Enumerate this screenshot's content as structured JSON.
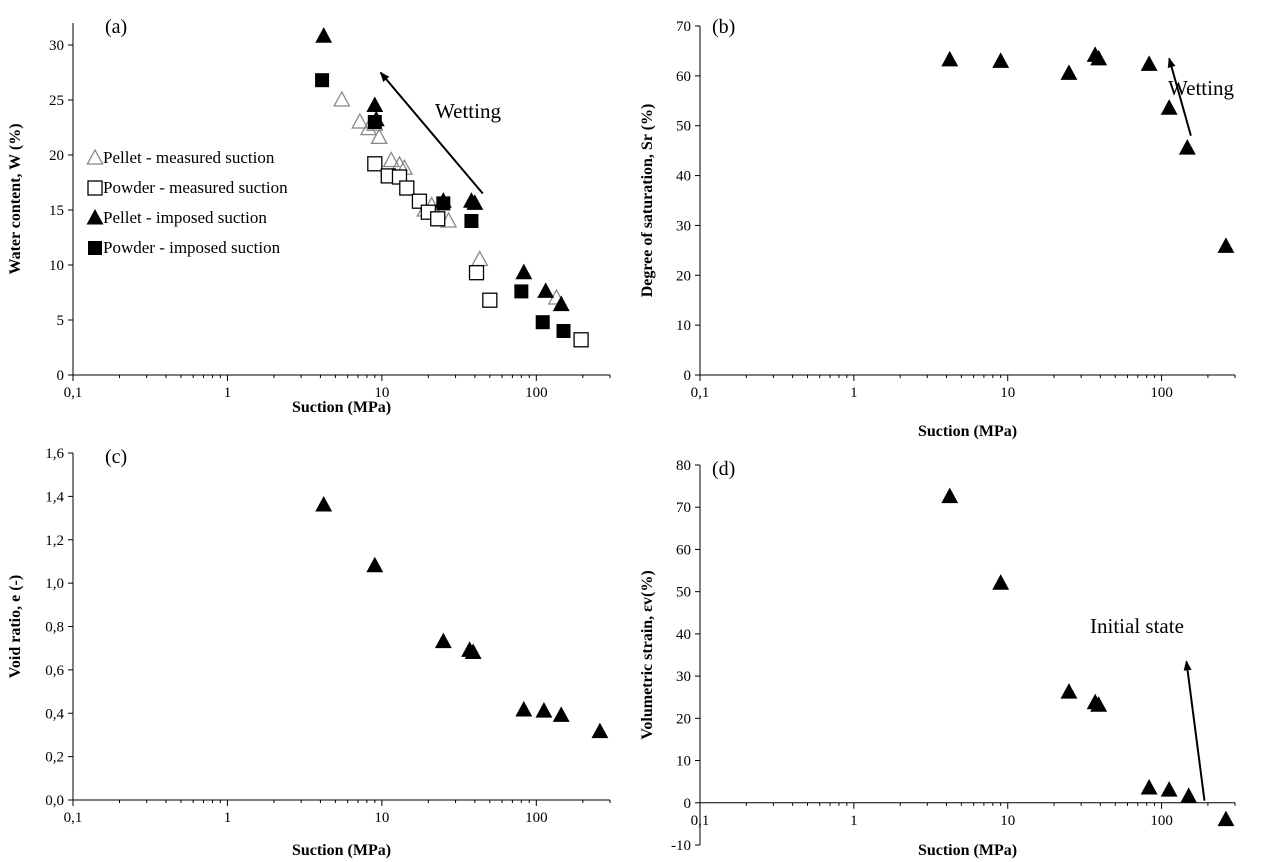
{
  "chart_data": [
    {
      "type": "scatter",
      "panel_label": "(a)",
      "xlabel": "Suction (MPa)",
      "ylabel": "Water content, W (%)",
      "xscale": "log",
      "xlim": [
        0.1,
        300
      ],
      "ylim": [
        0,
        32
      ],
      "xticks": [
        0.1,
        1,
        10,
        100
      ],
      "xtick_labels": [
        "0,1",
        "1",
        "10",
        "100"
      ],
      "yticks": [
        0,
        5,
        10,
        15,
        20,
        25,
        30
      ],
      "ytick_labels": [
        "0",
        "5",
        "10",
        "15",
        "20",
        "25",
        "30"
      ],
      "grid": false,
      "legend_position": "left",
      "series": [
        {
          "name": "Pellet - measured suction",
          "marker": "triangle-open",
          "color": "#888888",
          "x": [
            5.5,
            7.2,
            8.2,
            9.0,
            9.6,
            11.5,
            13.0,
            14.0,
            19.0,
            21.0,
            27.0,
            43.0,
            135.0
          ],
          "y": [
            25.0,
            23.0,
            22.4,
            22.8,
            21.6,
            19.5,
            19.1,
            18.8,
            15.0,
            15.4,
            14.0,
            10.5,
            7.0
          ]
        },
        {
          "name": "Powder - measured suction",
          "marker": "square-open",
          "color": "#000000",
          "x": [
            9.0,
            11.0,
            13.0,
            14.5,
            17.5,
            20.0,
            23.0,
            41.0,
            50.0,
            195.0
          ],
          "y": [
            19.2,
            18.1,
            18.0,
            17.0,
            15.8,
            14.8,
            14.2,
            9.3,
            6.8,
            3.2
          ]
        },
        {
          "name": "Pellet - imposed suction",
          "marker": "triangle-filled",
          "color": "#000000",
          "x": [
            4.2,
            9.0,
            9.2,
            25.0,
            38.0,
            40.0,
            83.0,
            115.0,
            145.0
          ],
          "y": [
            30.8,
            24.5,
            23.2,
            15.8,
            15.8,
            15.6,
            9.3,
            7.6,
            6.4
          ]
        },
        {
          "name": "Powder - imposed suction",
          "marker": "square-filled",
          "color": "#000000",
          "x": [
            4.1,
            9.0,
            25.0,
            38.0,
            80.0,
            110.0,
            150.0
          ],
          "y": [
            26.8,
            23.0,
            15.6,
            14.0,
            7.6,
            4.8,
            4.0
          ]
        }
      ],
      "annotations": [
        {
          "text": "Wetting",
          "arrow": {
            "from": [
              45,
              16.5
            ],
            "to": [
              9.8,
              27.5
            ]
          }
        }
      ]
    },
    {
      "type": "scatter",
      "panel_label": "(b)",
      "xlabel": "Suction (MPa)",
      "ylabel": "Degree of saturation, Sr (%)",
      "xscale": "log",
      "xlim": [
        0.1,
        300
      ],
      "ylim": [
        0,
        70
      ],
      "xticks": [
        0.1,
        1,
        10,
        100
      ],
      "xtick_labels": [
        "0,1",
        "1",
        "10",
        "100"
      ],
      "yticks": [
        0,
        10,
        20,
        30,
        40,
        50,
        60,
        70
      ],
      "ytick_labels": [
        "0",
        "10",
        "20",
        "30",
        "40",
        "50",
        "60",
        "70"
      ],
      "grid": false,
      "series": [
        {
          "marker": "triangle-filled",
          "color": "#000000",
          "x": [
            4.2,
            9.0,
            25.0,
            37.0,
            39.0,
            83.0,
            112.0,
            147.0,
            262.0
          ],
          "y": [
            63.2,
            62.9,
            60.5,
            64.1,
            63.4,
            62.3,
            53.5,
            45.5,
            25.8
          ]
        }
      ],
      "annotations": [
        {
          "text": "Wetting",
          "arrow": {
            "from": [
              155,
              48
            ],
            "to": [
              112,
              63.5
            ]
          }
        }
      ]
    },
    {
      "type": "scatter",
      "panel_label": "(c)",
      "xlabel": "Suction (MPa)",
      "ylabel": "Void ratio, e (-)",
      "xscale": "log",
      "xlim": [
        0.1,
        300
      ],
      "ylim": [
        0,
        1.6
      ],
      "xticks": [
        0.1,
        1,
        10,
        100
      ],
      "xtick_labels": [
        "0,1",
        "1",
        "10",
        "100"
      ],
      "yticks": [
        0,
        0.2,
        0.4,
        0.6,
        0.8,
        1.0,
        1.2,
        1.4,
        1.6
      ],
      "ytick_labels": [
        "0,0",
        "0,2",
        "0,4",
        "0,6",
        "0,8",
        "1,0",
        "1,2",
        "1,4",
        "1,6"
      ],
      "grid": false,
      "series": [
        {
          "marker": "triangle-filled",
          "color": "#000000",
          "x": [
            4.2,
            9.0,
            25.0,
            37.0,
            39.0,
            83.0,
            112.0,
            145.0,
            258.0
          ],
          "y": [
            1.36,
            1.08,
            0.73,
            0.69,
            0.68,
            0.415,
            0.41,
            0.39,
            0.315
          ]
        }
      ]
    },
    {
      "type": "scatter",
      "panel_label": "(d)",
      "xlabel": "Suction (MPa)",
      "ylabel": "Volumetric strain, εv(%)",
      "xscale": "log",
      "xlim": [
        0.1,
        300
      ],
      "ylim": [
        -10,
        80
      ],
      "xticks": [
        0.1,
        1,
        10,
        100
      ],
      "xtick_labels": [
        "0,1",
        "1",
        "10",
        "100"
      ],
      "yticks": [
        -10,
        0,
        10,
        20,
        30,
        40,
        50,
        60,
        70,
        80
      ],
      "ytick_labels": [
        "-10",
        "0",
        "10",
        "20",
        "30",
        "40",
        "50",
        "60",
        "70",
        "80"
      ],
      "grid": false,
      "series": [
        {
          "marker": "triangle-filled",
          "color": "#000000",
          "x": [
            4.2,
            9.0,
            25.0,
            37.0,
            39.0,
            83.0,
            112.0,
            150.0,
            262.0
          ],
          "y": [
            72.5,
            52.0,
            26.2,
            23.7,
            23.1,
            3.5,
            3.0,
            1.5,
            -4.0
          ]
        }
      ],
      "annotations": [
        {
          "text": "Initial state",
          "arrow": {
            "from": [
              190,
              0.5
            ],
            "to": [
              145,
              33.5
            ]
          }
        }
      ]
    }
  ]
}
